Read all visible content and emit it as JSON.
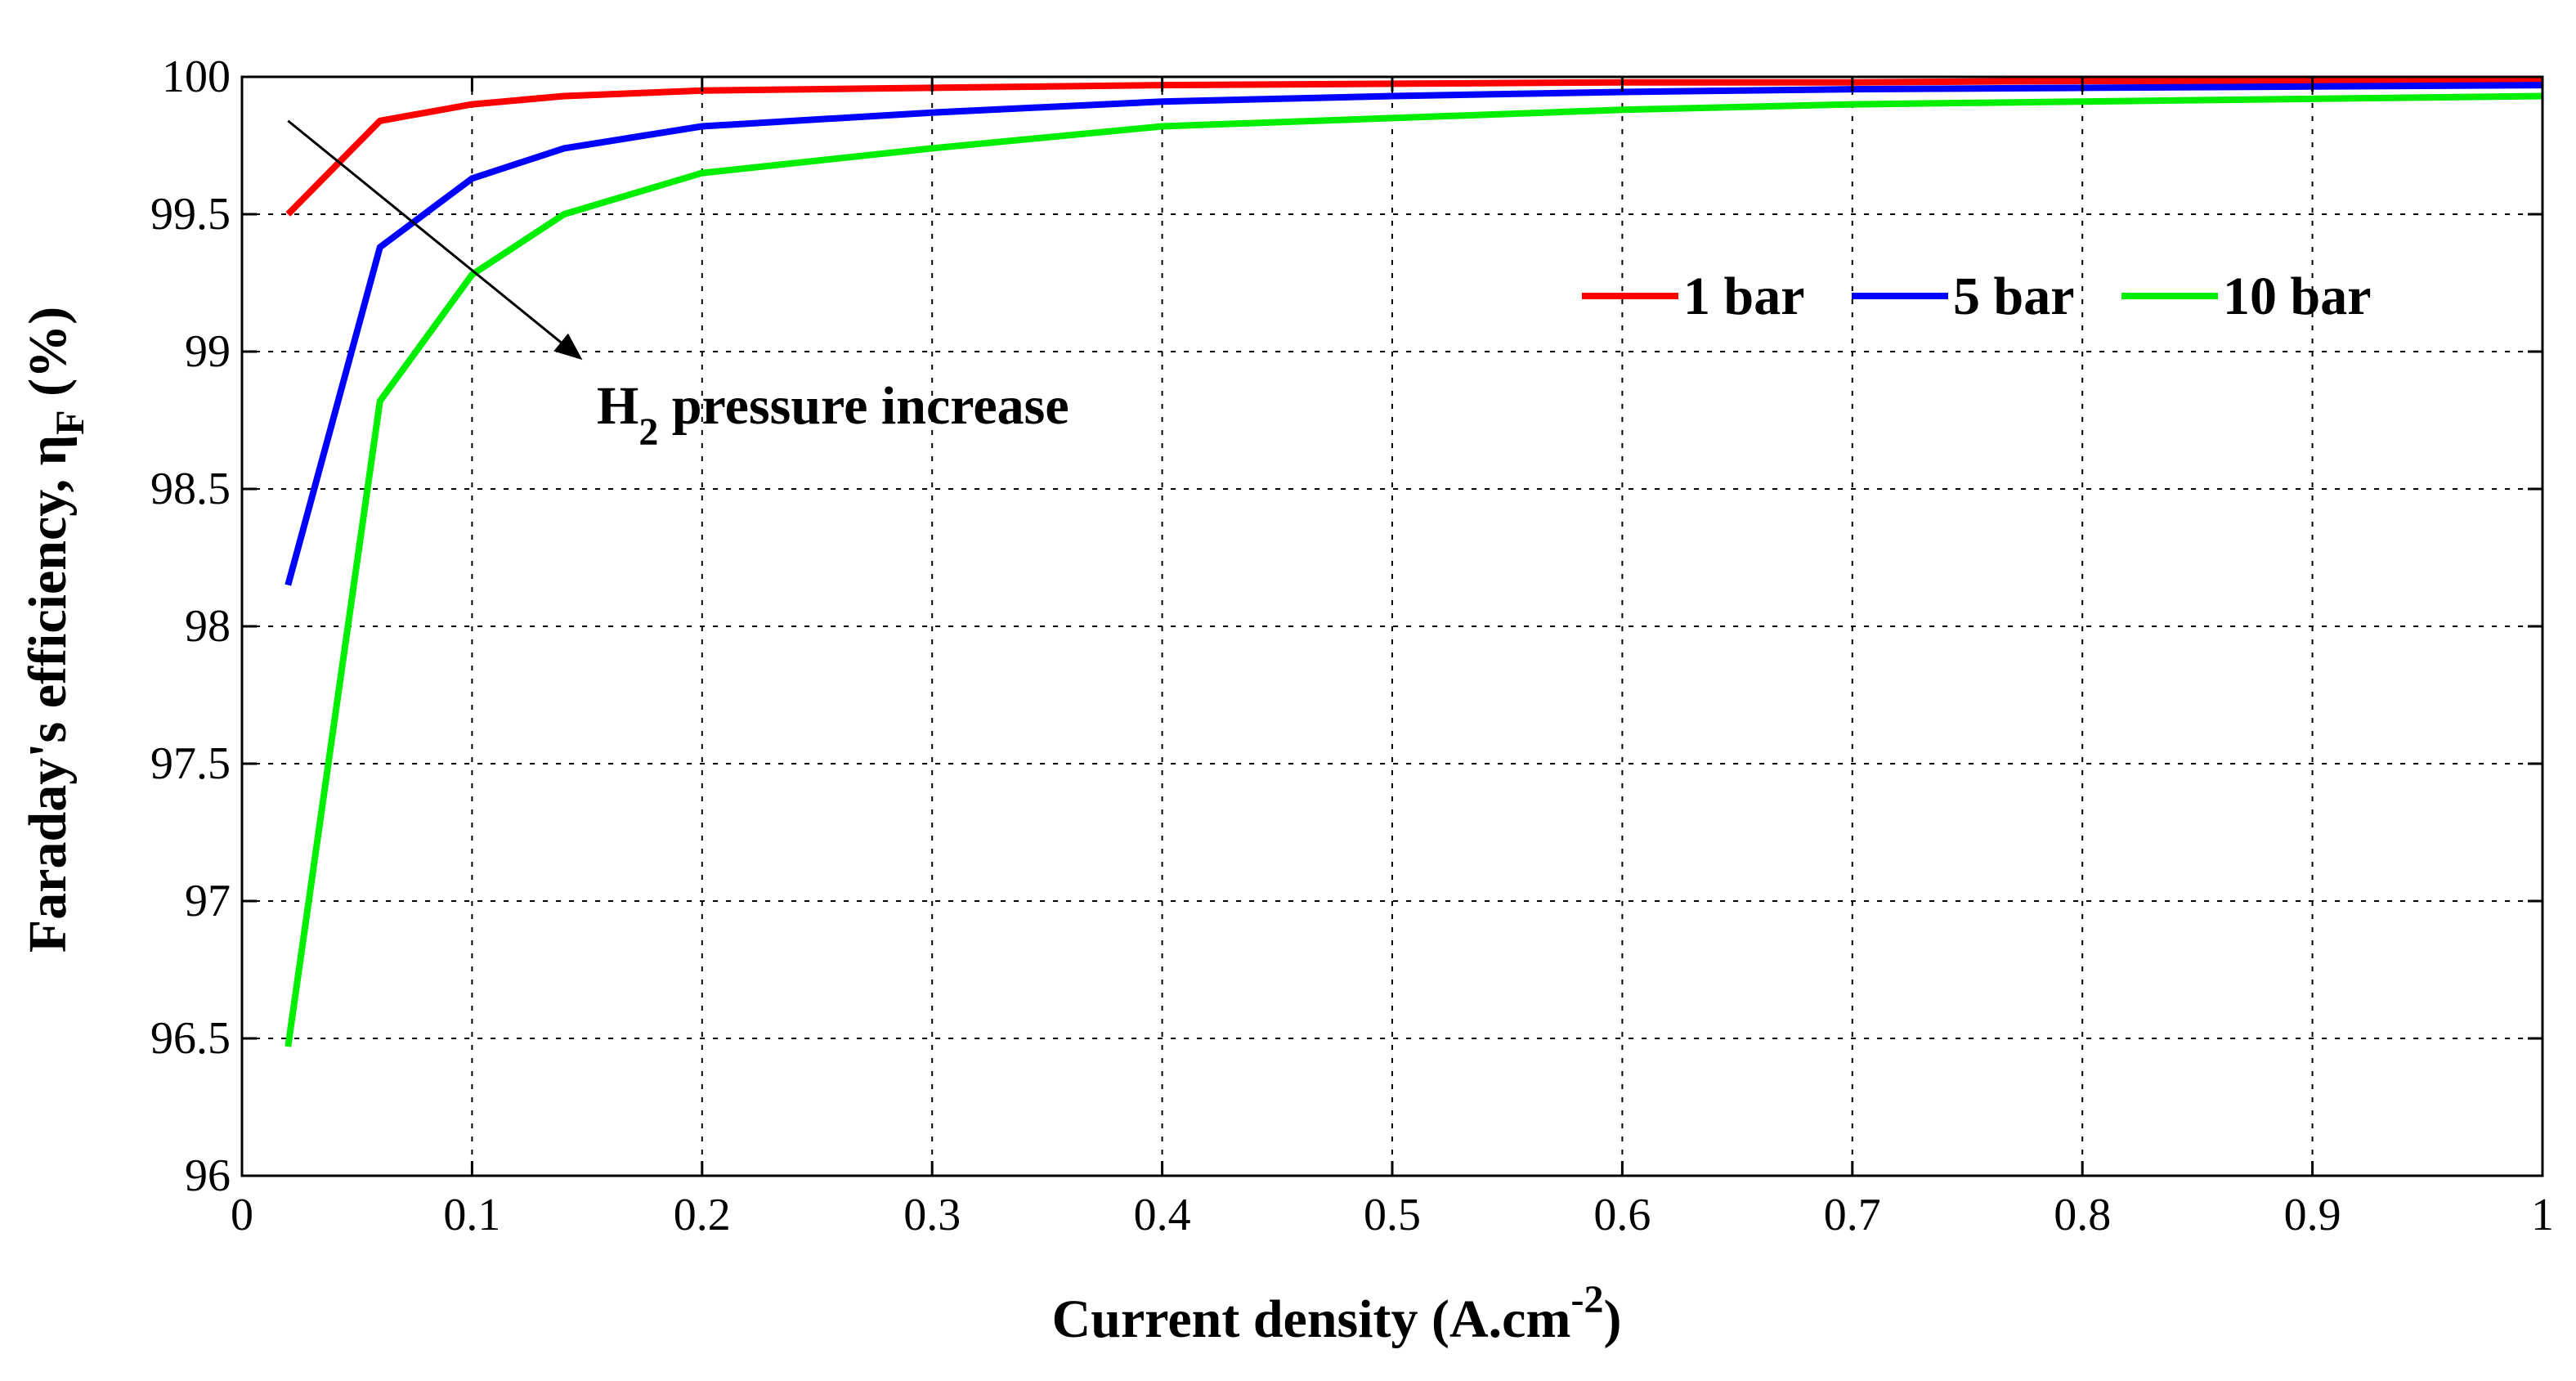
{
  "chart_data": {
    "type": "line",
    "title": "",
    "xlabel": "Current density (A.cm",
    "xlabel_sup": "-2",
    "xlabel_end": ")",
    "ylabel": "Faraday's efficiency, η",
    "ylabel_sub": "F",
    "ylabel_end": " (%)",
    "xlim": [
      0,
      1
    ],
    "ylim": [
      96,
      100
    ],
    "grid": true,
    "legend_position": "top-right",
    "x_ticks": [
      "0",
      "0.1",
      "0.2",
      "0.3",
      "0.4",
      "0.5",
      "0.6",
      "0.7",
      "0.8",
      "0.9",
      "1"
    ],
    "y_ticks": [
      "96",
      "96.5",
      "97",
      "97.5",
      "98",
      "98.5",
      "99",
      "99.5",
      "100"
    ],
    "series": [
      {
        "name": "1 bar",
        "color": "#ff0000",
        "x": [
          0.02,
          0.06,
          0.1,
          0.14,
          0.2,
          0.3,
          0.4,
          0.5,
          0.6,
          0.7,
          0.8,
          0.9,
          1.0
        ],
        "y": [
          99.5,
          99.84,
          99.9,
          99.93,
          99.95,
          99.96,
          99.97,
          99.975,
          99.98,
          99.98,
          99.985,
          99.985,
          99.99
        ]
      },
      {
        "name": "5 bar",
        "color": "#0000ff",
        "x": [
          0.02,
          0.06,
          0.1,
          0.14,
          0.2,
          0.3,
          0.4,
          0.5,
          0.6,
          0.7,
          0.8,
          0.9,
          1.0
        ],
        "y": [
          98.15,
          99.38,
          99.63,
          99.74,
          99.82,
          99.87,
          99.91,
          99.93,
          99.945,
          99.955,
          99.96,
          99.965,
          99.97
        ]
      },
      {
        "name": "10 bar",
        "color": "#00ee00",
        "x": [
          0.02,
          0.06,
          0.1,
          0.14,
          0.2,
          0.3,
          0.4,
          0.5,
          0.6,
          0.7,
          0.8,
          0.9,
          1.0
        ],
        "y": [
          96.47,
          98.82,
          99.28,
          99.5,
          99.65,
          99.74,
          99.82,
          99.85,
          99.88,
          99.9,
          99.91,
          99.92,
          99.93
        ]
      }
    ],
    "annotation": {
      "text_main": "H",
      "text_sub": "2",
      "text_rest": " pressure increase",
      "arrow_from": [
        0.02,
        99.84
      ],
      "arrow_to": [
        0.148,
        98.97
      ]
    }
  }
}
